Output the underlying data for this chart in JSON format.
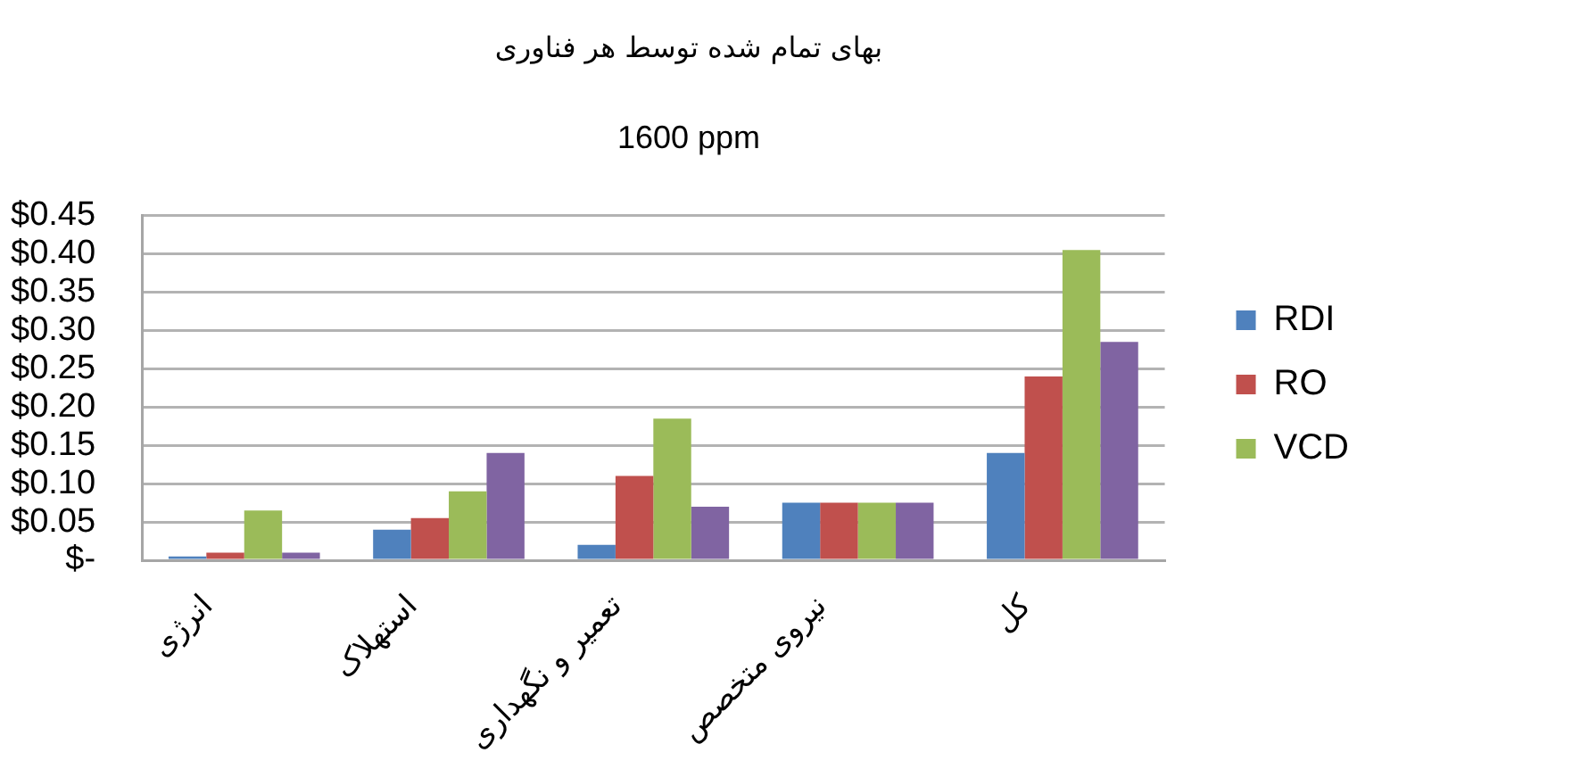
{
  "chart_data": {
    "type": "bar",
    "title": "بهای تمام شده توسط هر فناوری",
    "subtitle": "1600 ppm",
    "categories": [
      "انرژی",
      "استهلاک",
      "تعمیر و نگهداری",
      "نیروی متخصص",
      "کل"
    ],
    "series": [
      {
        "name": "RDI",
        "color": "#4f81bd",
        "values": [
          0.005,
          0.04,
          0.02,
          0.075,
          0.14
        ]
      },
      {
        "name": "RO",
        "color": "#c0504d",
        "values": [
          0.01,
          0.055,
          0.11,
          0.075,
          0.24
        ]
      },
      {
        "name": "VCD",
        "color": "#9bbb59",
        "values": [
          0.065,
          0.09,
          0.185,
          0.075,
          0.405
        ]
      },
      {
        "color": "#8064a2",
        "values": [
          0.01,
          0.14,
          0.07,
          0.075,
          0.285
        ]
      }
    ],
    "ylim": [
      0,
      0.45
    ],
    "yticks": [
      {
        "value": 0,
        "label": "$-"
      },
      {
        "value": 0.05,
        "label": "$0.05"
      },
      {
        "value": 0.1,
        "label": "$0.10"
      },
      {
        "value": 0.15,
        "label": "$0.15"
      },
      {
        "value": 0.2,
        "label": "$0.20"
      },
      {
        "value": 0.25,
        "label": "$0.25"
      },
      {
        "value": 0.3,
        "label": "$0.30"
      },
      {
        "value": 0.35,
        "label": "$0.35"
      },
      {
        "value": 0.4,
        "label": "$0.40"
      },
      {
        "value": 0.45,
        "label": "$0.45"
      }
    ],
    "grid": "y",
    "legend": "right"
  }
}
